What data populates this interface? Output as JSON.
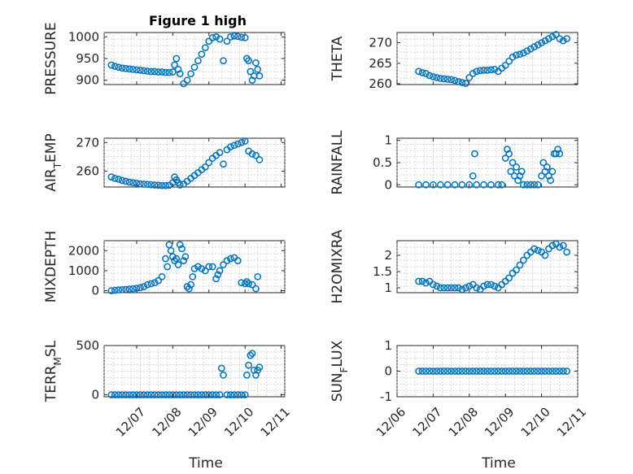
{
  "figure": {
    "title": "Figure 1 high",
    "marker_color": "#0072bd"
  },
  "chart_data": [
    {
      "type": "scatter",
      "title": "Figure 1 high",
      "ylabel": "PRESSURE",
      "ylim": [
        890,
        1010
      ],
      "yticks": [
        900,
        950,
        1000
      ],
      "ytick_labels": [
        "900",
        "950",
        "1000"
      ],
      "xticks": [
        1,
        2,
        3,
        4,
        5
      ],
      "xtick_labels": [
        "12/07",
        "12/08",
        "12/09",
        "12/10",
        "12/11"
      ],
      "xlim": [
        0.1,
        5.1
      ],
      "xlabel": "",
      "x": [
        0.3,
        0.4,
        0.5,
        0.6,
        0.7,
        0.8,
        0.9,
        1.0,
        1.1,
        1.2,
        1.3,
        1.4,
        1.5,
        1.6,
        1.7,
        1.8,
        1.9,
        2.0,
        2.05,
        2.1,
        2.15,
        2.2,
        2.3,
        2.4,
        2.5,
        2.6,
        2.7,
        2.8,
        2.9,
        3.0,
        3.1,
        3.2,
        3.3,
        3.4,
        3.5,
        3.6,
        3.7,
        3.8,
        3.9,
        4.0,
        4.05,
        4.1,
        4.15,
        4.2,
        4.25,
        4.3,
        4.35,
        4.4
      ],
      "y": [
        935,
        932,
        930,
        928,
        927,
        926,
        925,
        924,
        923,
        922,
        921,
        920,
        920,
        919,
        919,
        918,
        918,
        919,
        935,
        950,
        925,
        915,
        892,
        900,
        915,
        930,
        945,
        960,
        975,
        990,
        998,
        1000,
        995,
        945,
        990,
        1000,
        1002,
        1001,
        999,
        998,
        950,
        945,
        920,
        900,
        910,
        940,
        925,
        910
      ]
    },
    {
      "type": "scatter",
      "ylabel": "THETA",
      "ylim": [
        259.8,
        272.5
      ],
      "yticks": [
        260,
        265,
        270
      ],
      "ytick_labels": [
        "260",
        "265",
        "270"
      ],
      "xticks": [
        0,
        1,
        2,
        3,
        4,
        5
      ],
      "xtick_labels": [
        "12/06",
        "12/07",
        "12/08",
        "12/09",
        "12/10",
        "12/11"
      ],
      "xlim": [
        0,
        5
      ],
      "xlabel": "",
      "x": [
        0.6,
        0.7,
        0.8,
        0.9,
        1.0,
        1.1,
        1.2,
        1.3,
        1.4,
        1.5,
        1.6,
        1.7,
        1.8,
        1.9,
        2.0,
        2.1,
        2.2,
        2.3,
        2.4,
        2.5,
        2.6,
        2.7,
        2.8,
        2.9,
        3.0,
        3.1,
        3.2,
        3.3,
        3.4,
        3.5,
        3.6,
        3.7,
        3.8,
        3.9,
        4.0,
        4.1,
        4.2,
        4.3,
        4.4,
        4.5,
        4.6,
        4.7
      ],
      "y": [
        263,
        262.7,
        262.5,
        262,
        261.7,
        261.5,
        261.3,
        261.2,
        261.1,
        261,
        260.8,
        260.5,
        260.3,
        260.1,
        261.5,
        262.5,
        263,
        263.2,
        263.3,
        263.3,
        263.4,
        263.5,
        263,
        263.8,
        264.5,
        265.5,
        266.5,
        267,
        267.2,
        267.5,
        268,
        268.5,
        269,
        269.5,
        270,
        270.5,
        271,
        271.5,
        272,
        271,
        270.5,
        271
      ]
    },
    {
      "type": "scatter",
      "ylabel": "AIR_TEMP",
      "ylim": [
        254.5,
        271.5
      ],
      "yticks": [
        260,
        270
      ],
      "ytick_labels": [
        "260",
        "270"
      ],
      "xticks": [
        1,
        2,
        3,
        4,
        5
      ],
      "xtick_labels": [
        "12/07",
        "12/08",
        "12/09",
        "12/10",
        "12/11"
      ],
      "xlim": [
        0.1,
        5.1
      ],
      "xlabel": "",
      "x": [
        0.3,
        0.4,
        0.5,
        0.6,
        0.7,
        0.8,
        0.9,
        1.0,
        1.1,
        1.2,
        1.3,
        1.4,
        1.5,
        1.6,
        1.7,
        1.8,
        1.9,
        2.0,
        2.05,
        2.1,
        2.15,
        2.2,
        2.3,
        2.4,
        2.5,
        2.6,
        2.7,
        2.8,
        2.9,
        3.0,
        3.1,
        3.2,
        3.3,
        3.4,
        3.5,
        3.6,
        3.7,
        3.8,
        3.9,
        4.0,
        4.1,
        4.2,
        4.3,
        4.4
      ],
      "y": [
        258,
        257.5,
        257.2,
        256.8,
        256.5,
        256.2,
        256,
        255.8,
        255.6,
        255.5,
        255.4,
        255.3,
        255.2,
        255.1,
        255,
        255,
        255.1,
        256,
        258,
        257,
        256,
        255.2,
        255.5,
        256.5,
        257.5,
        258.5,
        259.5,
        260.5,
        261.5,
        263,
        264.5,
        265.5,
        266.5,
        262.5,
        267.5,
        268.5,
        269,
        269.5,
        270,
        270.5,
        267,
        266,
        265.5,
        264
      ]
    },
    {
      "type": "scatter",
      "ylabel": "RAINFALL",
      "ylim": [
        -0.05,
        1.05
      ],
      "yticks": [
        0,
        0.5,
        1
      ],
      "ytick_labels": [
        "0",
        "0.5",
        "1"
      ],
      "xticks": [
        0,
        1,
        2,
        3,
        4,
        5
      ],
      "xtick_labels": [
        "12/06",
        "12/07",
        "12/08",
        "12/09",
        "12/10",
        "12/11"
      ],
      "xlim": [
        0,
        5
      ],
      "xlabel": "",
      "x": [
        0.6,
        0.8,
        1.0,
        1.2,
        1.4,
        1.6,
        1.8,
        2.0,
        2.1,
        2.15,
        2.2,
        2.4,
        2.6,
        2.8,
        2.9,
        3.0,
        3.05,
        3.1,
        3.15,
        3.2,
        3.25,
        3.3,
        3.35,
        3.4,
        3.45,
        3.5,
        3.6,
        3.7,
        3.8,
        3.9,
        4.0,
        4.05,
        4.1,
        4.15,
        4.2,
        4.25,
        4.3,
        4.35,
        4.4,
        4.45,
        4.5
      ],
      "y": [
        0,
        0,
        0,
        0,
        0,
        0,
        0,
        0,
        0.2,
        0.7,
        0,
        0,
        0,
        0,
        0,
        0.6,
        0.8,
        0.7,
        0.3,
        0.5,
        0.2,
        0.4,
        0.1,
        0.2,
        0.3,
        0,
        0,
        0,
        0,
        0,
        0.2,
        0.5,
        0.3,
        0.4,
        0.2,
        0.1,
        0.3,
        0.7,
        0.7,
        0.8,
        0.7
      ]
    },
    {
      "type": "scatter",
      "ylabel": "MIXDEPTH",
      "ylim": [
        -100,
        2500
      ],
      "yticks": [
        0,
        1000,
        2000
      ],
      "ytick_labels": [
        "0",
        "1000",
        "2000"
      ],
      "xticks": [
        1,
        2,
        3,
        4,
        5
      ],
      "xtick_labels": [
        "12/07",
        "12/08",
        "12/09",
        "12/10",
        "12/11"
      ],
      "xlim": [
        0.1,
        5.1
      ],
      "xlabel": "",
      "x": [
        0.3,
        0.4,
        0.5,
        0.6,
        0.7,
        0.8,
        0.9,
        1.0,
        1.1,
        1.2,
        1.3,
        1.4,
        1.5,
        1.6,
        1.7,
        1.8,
        1.85,
        1.9,
        1.95,
        2.0,
        2.05,
        2.1,
        2.15,
        2.2,
        2.25,
        2.3,
        2.35,
        2.4,
        2.45,
        2.5,
        2.55,
        2.6,
        2.7,
        2.8,
        2.9,
        3.0,
        3.1,
        3.2,
        3.25,
        3.3,
        3.4,
        3.5,
        3.6,
        3.7,
        3.8,
        3.9,
        4.0,
        4.05,
        4.1,
        4.2,
        4.3,
        4.35
      ],
      "y": [
        0,
        20,
        40,
        50,
        60,
        80,
        100,
        120,
        150,
        200,
        300,
        350,
        400,
        500,
        700,
        1600,
        1200,
        2300,
        2000,
        1700,
        1500,
        1600,
        1300,
        2300,
        2100,
        1500,
        1700,
        200,
        100,
        300,
        700,
        1100,
        1200,
        1100,
        1000,
        1200,
        1200,
        600,
        800,
        1000,
        1300,
        1500,
        1600,
        1650,
        1500,
        400,
        350,
        450,
        350,
        300,
        100,
        700
      ]
    },
    {
      "type": "scatter",
      "ylabel": "H2OMIXRA",
      "ylim": [
        0.85,
        2.45
      ],
      "yticks": [
        1,
        1.5,
        2
      ],
      "ytick_labels": [
        "1",
        "1.5",
        "2"
      ],
      "xticks": [
        0,
        1,
        2,
        3,
        4,
        5
      ],
      "xtick_labels": [
        "12/06",
        "12/07",
        "12/08",
        "12/09",
        "12/10",
        "12/11"
      ],
      "xlim": [
        0,
        5
      ],
      "xlabel": "",
      "x": [
        0.6,
        0.7,
        0.8,
        0.9,
        1.0,
        1.1,
        1.2,
        1.3,
        1.4,
        1.5,
        1.6,
        1.7,
        1.8,
        1.9,
        2.0,
        2.1,
        2.2,
        2.3,
        2.4,
        2.5,
        2.6,
        2.7,
        2.8,
        2.9,
        3.0,
        3.1,
        3.2,
        3.3,
        3.4,
        3.5,
        3.6,
        3.7,
        3.8,
        3.9,
        4.0,
        4.1,
        4.2,
        4.3,
        4.4,
        4.5,
        4.6,
        4.7
      ],
      "y": [
        1.2,
        1.2,
        1.15,
        1.2,
        1.1,
        1.05,
        1.0,
        1.0,
        1.0,
        1.0,
        1.0,
        1.0,
        0.95,
        1.0,
        1.05,
        1.1,
        1.0,
        0.95,
        1.05,
        1.1,
        1.1,
        1.05,
        1.0,
        1.1,
        1.2,
        1.3,
        1.45,
        1.55,
        1.7,
        1.85,
        2.0,
        2.1,
        2.2,
        2.15,
        2.1,
        2.0,
        2.2,
        2.3,
        2.35,
        2.25,
        2.3,
        2.1
      ]
    },
    {
      "type": "scatter",
      "ylabel": "TERR_MSL",
      "ylim": [
        -20,
        500
      ],
      "yticks": [
        0,
        500
      ],
      "ytick_labels": [
        "0",
        "500"
      ],
      "xticks": [
        1,
        2,
        3,
        4,
        5
      ],
      "xtick_labels": [
        "12/07",
        "12/08",
        "12/09",
        "12/10",
        "12/11"
      ],
      "xlim": [
        0.1,
        5.1
      ],
      "xlabel": "Time",
      "x": [
        0.3,
        0.4,
        0.5,
        0.6,
        0.7,
        0.8,
        0.9,
        1.0,
        1.1,
        1.2,
        1.3,
        1.4,
        1.5,
        1.6,
        1.7,
        1.8,
        1.9,
        2.0,
        2.1,
        2.2,
        2.3,
        2.4,
        2.5,
        2.6,
        2.7,
        2.8,
        2.9,
        3.0,
        3.1,
        3.2,
        3.3,
        3.35,
        3.4,
        3.5,
        3.6,
        3.7,
        3.8,
        3.9,
        4.0,
        4.05,
        4.1,
        4.15,
        4.2,
        4.25,
        4.3,
        4.35,
        4.4
      ],
      "y": [
        0,
        0,
        0,
        0,
        0,
        0,
        0,
        0,
        0,
        0,
        0,
        0,
        0,
        0,
        0,
        0,
        0,
        0,
        0,
        0,
        0,
        0,
        0,
        0,
        0,
        0,
        0,
        0,
        0,
        0,
        0,
        270,
        200,
        0,
        0,
        0,
        0,
        0,
        0,
        200,
        300,
        400,
        420,
        250,
        200,
        250,
        280
      ]
    },
    {
      "type": "scatter",
      "ylabel": "SUN_FLUX",
      "ylim": [
        -1,
        1
      ],
      "yticks": [
        -1,
        0,
        1
      ],
      "ytick_labels": [
        "-1",
        "0",
        "1"
      ],
      "xticks": [
        0,
        1,
        2,
        3,
        4,
        5
      ],
      "xtick_labels": [
        "12/06",
        "12/07",
        "12/08",
        "12/09",
        "12/10",
        "12/11"
      ],
      "xlim": [
        0,
        5
      ],
      "xlabel": "Time",
      "x": [
        0.6,
        0.7,
        0.8,
        0.9,
        1.0,
        1.1,
        1.2,
        1.3,
        1.4,
        1.5,
        1.6,
        1.7,
        1.8,
        1.9,
        2.0,
        2.1,
        2.2,
        2.3,
        2.4,
        2.5,
        2.6,
        2.7,
        2.8,
        2.9,
        3.0,
        3.1,
        3.2,
        3.3,
        3.4,
        3.5,
        3.6,
        3.7,
        3.8,
        3.9,
        4.0,
        4.1,
        4.2,
        4.3,
        4.4,
        4.5,
        4.6,
        4.7
      ],
      "y": [
        0,
        0,
        0,
        0,
        0,
        0,
        0,
        0,
        0,
        0,
        0,
        0,
        0,
        0,
        0,
        0,
        0,
        0,
        0,
        0,
        0,
        0,
        0,
        0,
        0,
        0,
        0,
        0,
        0,
        0,
        0,
        0,
        0,
        0,
        0,
        0,
        0,
        0,
        0,
        0,
        0,
        0
      ]
    }
  ]
}
